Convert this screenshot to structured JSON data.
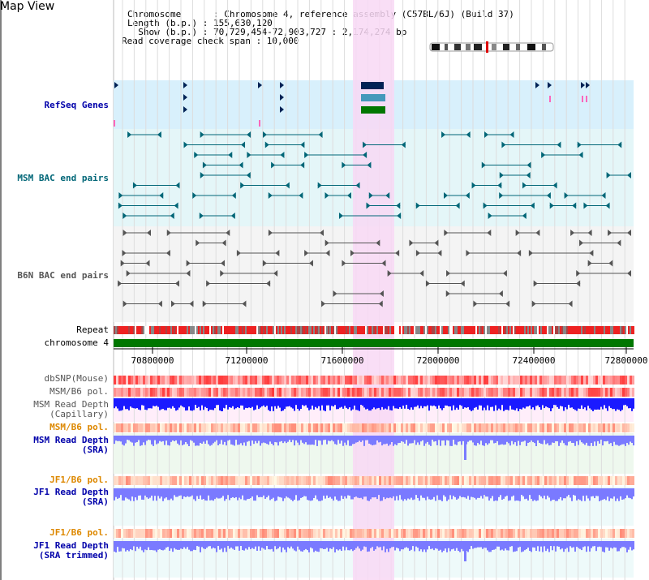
{
  "title": "Map View",
  "header": {
    "chromosome_line": "Chromosome      : Chromosome 4, reference assembly (C57BL/6J) (Build 37)",
    "length_line": "Length (b.p.) : 155,630,120",
    "show_line": "  Show (b.p.) : 70,729,454-72,903,727 : 2,174,274 bp",
    "coverage_line": "Read coverage check span : 10,000"
  },
  "tracks": {
    "refseq": "RefSeq Genes",
    "msm_bac": "MSM BAC end pairs",
    "b6n_bac": "B6N BAC end pairs",
    "repeat": "Repeat",
    "chromosome": "chromosome 4",
    "dbsnp": "dbSNP(Mouse)",
    "msm_b6_pol_1": "MSM/B6 pol.",
    "msm_read_depth_cap_1": "MSM Read Depth",
    "msm_read_depth_cap_2": "(Capillary)",
    "msm_b6_pol_2": "MSM/B6 pol.",
    "msm_read_depth_sra_1": "MSM Read Depth",
    "msm_read_depth_sra_2": "(SRA)",
    "jf1_b6_pol_1": "JF1/B6 pol.",
    "jf1_read_depth_sra_1": "JF1 Read Depth",
    "jf1_read_depth_sra_2": "(SRA)",
    "jf1_b6_pol_2": "JF1/B6 pol.",
    "jf1_read_depth_trim_1": "JF1 Read Depth",
    "jf1_read_depth_trim_2": "(SRA trimmed)"
  },
  "axis": {
    "ticks": [
      "70800000",
      "71200000",
      "71600000",
      "72000000",
      "72400000",
      "72800000"
    ],
    "range": [
      70729454,
      72903727
    ]
  },
  "colors": {
    "highlight": "#f8d8f4",
    "refseq_bg": "#d8f0fc",
    "msm_bg": "#e4f6f8",
    "b6n_bg": "#f4f4f4",
    "chromosome": "#007700",
    "dark_navy": "#002255",
    "mid_blue": "#4499bb",
    "green": "#007700",
    "teal_line": "#006677",
    "gray_line": "#555555",
    "depth_blue": "#1a1aff",
    "depth_light": "#7a7aff"
  },
  "icons": {
    "chromosome_ideogram": "chromosome-ideogram-icon"
  }
}
